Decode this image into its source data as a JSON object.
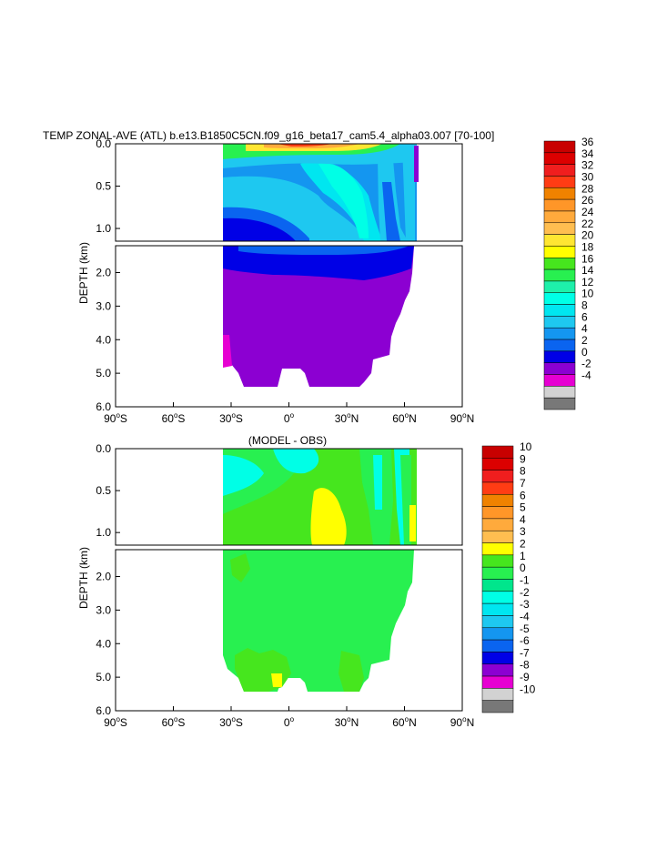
{
  "chart_data": [
    {
      "type": "heatmap",
      "title": "TEMP ZONAL-AVE (ATL) b.e13.B1850C5CN.f09_g16_beta17_cam5.4_alpha03.007 [70-100]",
      "ylabel": "DEPTH (km)",
      "x_ticks": [
        {
          "deg": "90",
          "hemi": "S"
        },
        {
          "deg": "60",
          "hemi": "S"
        },
        {
          "deg": "30",
          "hemi": "S"
        },
        {
          "deg": "0",
          "hemi": ""
        },
        {
          "deg": "30",
          "hemi": "N"
        },
        {
          "deg": "60",
          "hemi": "N"
        },
        {
          "deg": "90",
          "hemi": "N"
        }
      ],
      "y_ticks_top": [
        "0.0",
        "0.5",
        "1.0"
      ],
      "y_ticks_bottom": [
        "2.0",
        "3.0",
        "4.0",
        "5.0",
        "6.0"
      ],
      "xlim": [
        -90,
        90
      ],
      "ylim": [
        0,
        6
      ],
      "colorbar_labels": [
        "36",
        "34",
        "32",
        "30",
        "28",
        "26",
        "24",
        "22",
        "20",
        "18",
        "16",
        "14",
        "12",
        "10",
        "8",
        "6",
        "4",
        "2",
        "0",
        "-2",
        "-4"
      ],
      "colorbar_colors": [
        "#c80000",
        "#dc0000",
        "#f01e1e",
        "#ff3c14",
        "#f08200",
        "#ff9628",
        "#ffaa3c",
        "#ffbe50",
        "#ffe632",
        "#ffff00",
        "#46e61e",
        "#28f050",
        "#1ef0aa",
        "#00ffe6",
        "#00e6f0",
        "#1ec8f0",
        "#1496f0",
        "#0a64f0",
        "#0000e6",
        "#8c00d2",
        "#e600d2",
        "#d2d2d2",
        "#787878"
      ]
    },
    {
      "type": "heatmap",
      "title": "(MODEL - OBS)",
      "ylabel": "DEPTH (km)",
      "x_ticks": [
        {
          "deg": "90",
          "hemi": "S"
        },
        {
          "deg": "60",
          "hemi": "S"
        },
        {
          "deg": "30",
          "hemi": "S"
        },
        {
          "deg": "0",
          "hemi": ""
        },
        {
          "deg": "30",
          "hemi": "N"
        },
        {
          "deg": "60",
          "hemi": "N"
        },
        {
          "deg": "90",
          "hemi": "N"
        }
      ],
      "y_ticks_top": [
        "0.0",
        "0.5",
        "1.0"
      ],
      "y_ticks_bottom": [
        "2.0",
        "3.0",
        "4.0",
        "5.0",
        "6.0"
      ],
      "xlim": [
        -90,
        90
      ],
      "ylim": [
        0,
        6
      ],
      "colorbar_labels": [
        "10",
        "9",
        "8",
        "7",
        "6",
        "5",
        "4",
        "3",
        "2",
        "1",
        "0",
        "-1",
        "-2",
        "-3",
        "-4",
        "-5",
        "-6",
        "-7",
        "-8",
        "-9",
        "-10"
      ],
      "colorbar_colors": [
        "#c80000",
        "#dc0000",
        "#f01e1e",
        "#ff3c14",
        "#f08200",
        "#ff9628",
        "#ffaa3c",
        "#ffbe50",
        "#ffff00",
        "#46e61e",
        "#28f050",
        "#00e68c",
        "#00ffe6",
        "#00e6f0",
        "#1ec8f0",
        "#1496f0",
        "#0a64f0",
        "#0000e6",
        "#8c00d2",
        "#e600d2",
        "#d2d2d2",
        "#787878"
      ]
    }
  ]
}
